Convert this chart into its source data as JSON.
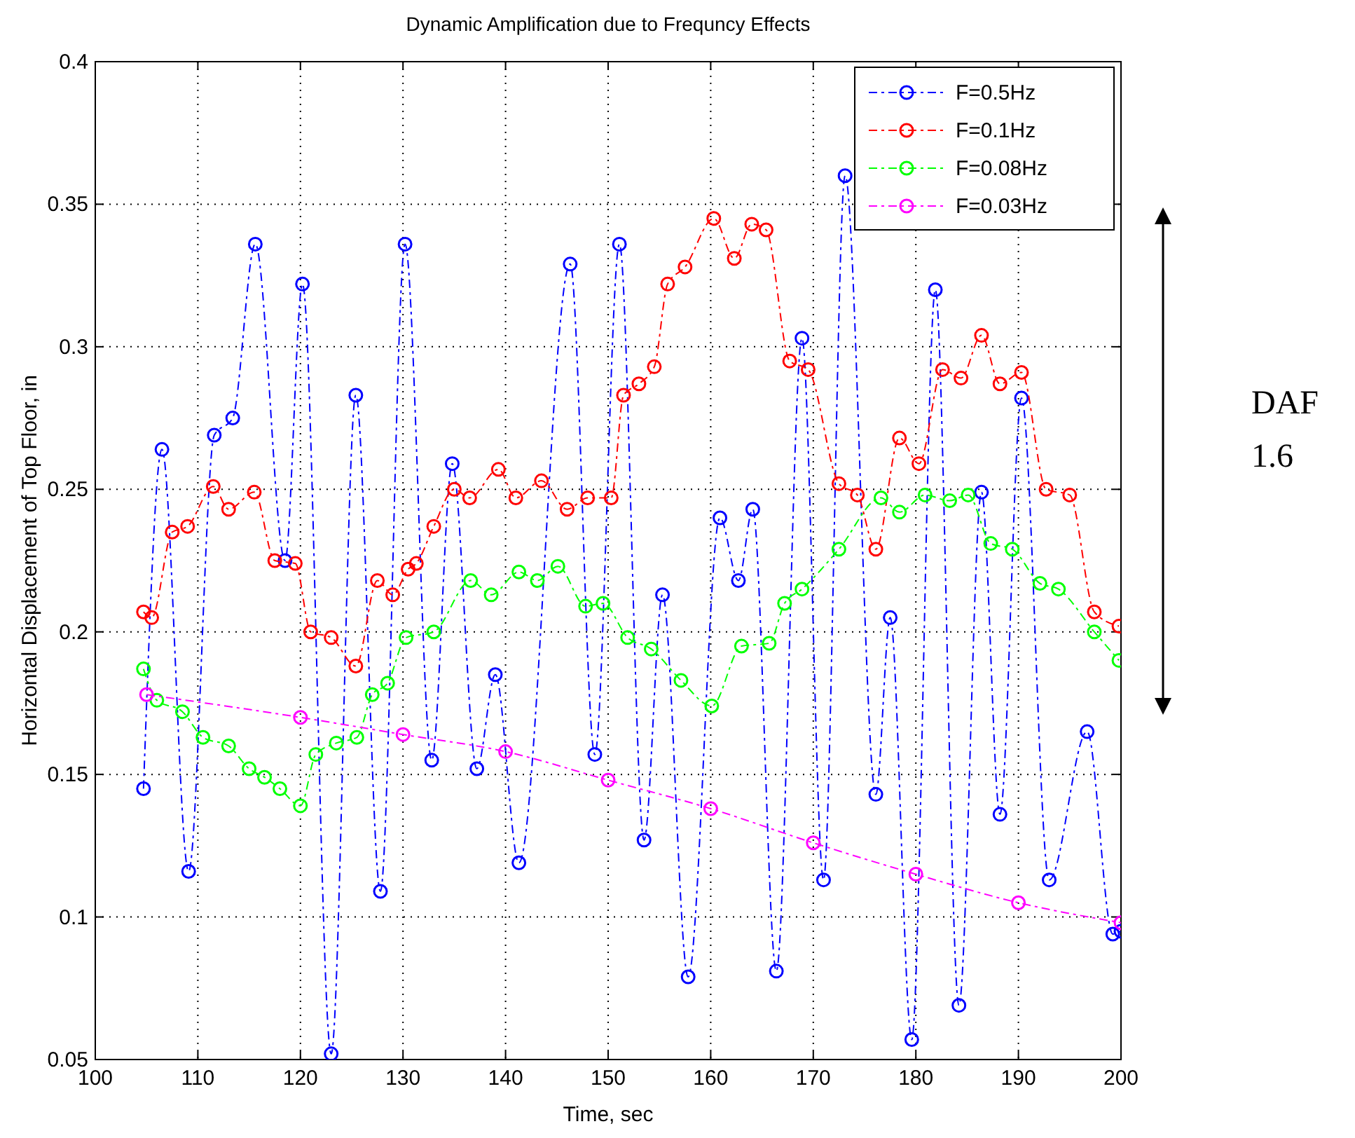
{
  "chart_data": {
    "type": "line",
    "title": "Dynamic Amplification due to Frequncy Effects",
    "xlabel": "Time, sec",
    "ylabel": "Horizontal Displacement of Top Floor, in",
    "xlim": [
      100,
      200
    ],
    "xticks": [
      100,
      110,
      120,
      130,
      140,
      150,
      160,
      170,
      180,
      190,
      200
    ],
    "ylim": [
      0.05,
      0.4
    ],
    "yticks": [
      0.05,
      0.1,
      0.15,
      0.2,
      0.25,
      0.3,
      0.35,
      0.4
    ],
    "grid": true,
    "legend": "top right",
    "marker": "circle",
    "line_style": "dashed",
    "annotations": [
      "DAF",
      "1.6"
    ],
    "series": [
      {
        "name": "F=0.5Hz",
        "color": "#0000ff",
        "x": [
          104.7,
          106.5,
          109.1,
          111.6,
          113.4,
          115.6,
          118.5,
          120.2,
          123,
          125.4,
          127.8,
          130.2,
          132.8,
          134.8,
          137.2,
          139,
          141.3,
          146.3,
          148.7,
          151.1,
          153.5,
          155.3,
          157.8,
          160.9,
          162.7,
          164.1,
          166.4,
          168.9,
          171,
          173.1,
          176.1,
          177.5,
          179.6,
          181.9,
          184.2,
          186.4,
          188.2,
          190.3,
          193,
          196.7,
          199.2,
          200
        ],
        "values": [
          0.145,
          0.264,
          0.116,
          0.269,
          0.275,
          0.336,
          0.225,
          0.322,
          0.052,
          0.283,
          0.109,
          0.336,
          0.155,
          0.259,
          0.152,
          0.185,
          0.119,
          0.329,
          0.157,
          0.336,
          0.127,
          0.213,
          0.079,
          0.24,
          0.218,
          0.243,
          0.081,
          0.303,
          0.113,
          0.36,
          0.143,
          0.205,
          0.057,
          0.32,
          0.069,
          0.249,
          0.136,
          0.282,
          0.113,
          0.165,
          0.094,
          0.095
        ]
      },
      {
        "name": "F=0.1Hz",
        "color": "#ff0000",
        "x": [
          104.7,
          105.5,
          107.5,
          109,
          111.5,
          113,
          115.5,
          117.5,
          119.5,
          121,
          123,
          125.4,
          127.5,
          129,
          130.5,
          131.3,
          133,
          135,
          136.5,
          139.3,
          141,
          143.5,
          146,
          148,
          150.3,
          151.5,
          153,
          154.5,
          155.8,
          157.5,
          160.3,
          162.3,
          164,
          165.4,
          167.7,
          169.5,
          172.5,
          174.3,
          176.1,
          178.4,
          180.3,
          182.6,
          184.4,
          186.4,
          188.2,
          190.3,
          192.7,
          195,
          197.4,
          199.8
        ],
        "values": [
          0.207,
          0.205,
          0.235,
          0.237,
          0.251,
          0.243,
          0.249,
          0.225,
          0.224,
          0.2,
          0.198,
          0.188,
          0.218,
          0.213,
          0.222,
          0.224,
          0.237,
          0.25,
          0.247,
          0.257,
          0.247,
          0.253,
          0.243,
          0.247,
          0.247,
          0.283,
          0.287,
          0.293,
          0.322,
          0.328,
          0.345,
          0.331,
          0.343,
          0.341,
          0.295,
          0.292,
          0.252,
          0.248,
          0.229,
          0.268,
          0.259,
          0.292,
          0.289,
          0.304,
          0.287,
          0.291,
          0.25,
          0.248,
          0.207,
          0.202
        ]
      },
      {
        "name": "F=0.08Hz",
        "color": "#00ff00",
        "x": [
          104.7,
          106,
          108.5,
          110.5,
          113,
          115,
          116.5,
          118,
          120,
          121.5,
          123.5,
          125.5,
          127,
          128.5,
          130.3,
          133,
          136.6,
          138.6,
          141.3,
          143.1,
          145.1,
          147.8,
          149.5,
          151.9,
          154.2,
          157.1,
          160.1,
          163,
          165.7,
          167.2,
          168.9,
          172.5,
          176.6,
          178.4,
          180.9,
          183.3,
          185.1,
          187.3,
          189.4,
          192.1,
          193.9,
          197.4,
          199.8
        ],
        "values": [
          0.187,
          0.176,
          0.172,
          0.163,
          0.16,
          0.152,
          0.149,
          0.145,
          0.139,
          0.157,
          0.161,
          0.163,
          0.178,
          0.182,
          0.198,
          0.2,
          0.218,
          0.213,
          0.221,
          0.218,
          0.223,
          0.209,
          0.21,
          0.198,
          0.194,
          0.183,
          0.174,
          0.195,
          0.196,
          0.21,
          0.215,
          0.229,
          0.247,
          0.242,
          0.248,
          0.246,
          0.248,
          0.231,
          0.229,
          0.217,
          0.215,
          0.2,
          0.19
        ]
      },
      {
        "name": "F=0.03Hz",
        "color": "#ff00ff",
        "x": [
          105,
          120,
          130,
          140,
          150,
          160,
          170,
          180,
          190,
          200
        ],
        "values": [
          0.178,
          0.17,
          0.164,
          0.158,
          0.148,
          0.138,
          0.126,
          0.115,
          0.105,
          0.098
        ]
      }
    ]
  }
}
